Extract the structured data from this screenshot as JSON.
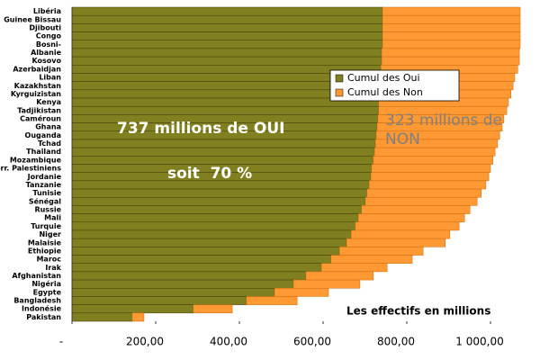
{
  "chart_data": {
    "type": "stacked_barh",
    "categories": [
      "Libéria",
      "Guinee Bissau",
      "Djibouti",
      "Congo",
      "Bosni-",
      "Albanie",
      "Kosovo",
      "Azerbaidjan",
      "Liban",
      "Kazakhstan",
      "Kyrguizistan",
      "Kenya",
      "Tadjikistan",
      "Caméroun",
      "Ghana",
      "Ouganda",
      "Tchad",
      "Thailand",
      "Mozambique",
      "Terr. Palestiniens",
      "Jordanie",
      "Tanzanie",
      "Tunisie",
      "Sénégal",
      "Russie",
      "Mali",
      "Turquie",
      "Niger",
      "Malaisie",
      "Ethiopie",
      "Maroc",
      "Irak",
      "Afghanistan",
      "Nigéria",
      "Egypte",
      "Bangladesh",
      "Indonésie",
      "Pakistan"
    ],
    "series": [
      {
        "name": "Cumul des Oui",
        "color": "#808020",
        "values": [
          742,
          742,
          742,
          742,
          742,
          740,
          740,
          738,
          738,
          735,
          735,
          733,
          733,
          731,
          729,
          727,
          725,
          723,
          720,
          716,
          714,
          710,
          705,
          701,
          692,
          684,
          677,
          667,
          656,
          639,
          619,
          596,
          559,
          529,
          484,
          417,
          290,
          144
        ]
      },
      {
        "name": "Cumul des Non",
        "color": "#ff9933",
        "values": [
          329,
          329,
          329,
          329,
          329,
          329,
          329,
          327,
          320,
          319,
          314,
          310,
          306,
          301,
          299,
          295,
          292,
          288,
          286,
          284,
          282,
          279,
          273,
          267,
          259,
          254,
          248,
          236,
          236,
          200,
          194,
          157,
          161,
          159,
          129,
          121,
          93,
          28
        ]
      }
    ],
    "xlim": [
      0,
      1100
    ],
    "xticks": [
      {
        "value": 0,
        "label": "-"
      },
      {
        "value": 200,
        "label": "200,00"
      },
      {
        "value": 400,
        "label": "400,00"
      },
      {
        "value": 600,
        "label": "600,00"
      },
      {
        "value": 800,
        "label": "800,00"
      },
      {
        "value": 1000,
        "label": "1 000,00"
      }
    ],
    "x_label": "Les effectifs en millions",
    "annotations": [
      "737 millions de OUI",
      "soit  70 %",
      "323 millions de NON"
    ],
    "legend": "right"
  }
}
